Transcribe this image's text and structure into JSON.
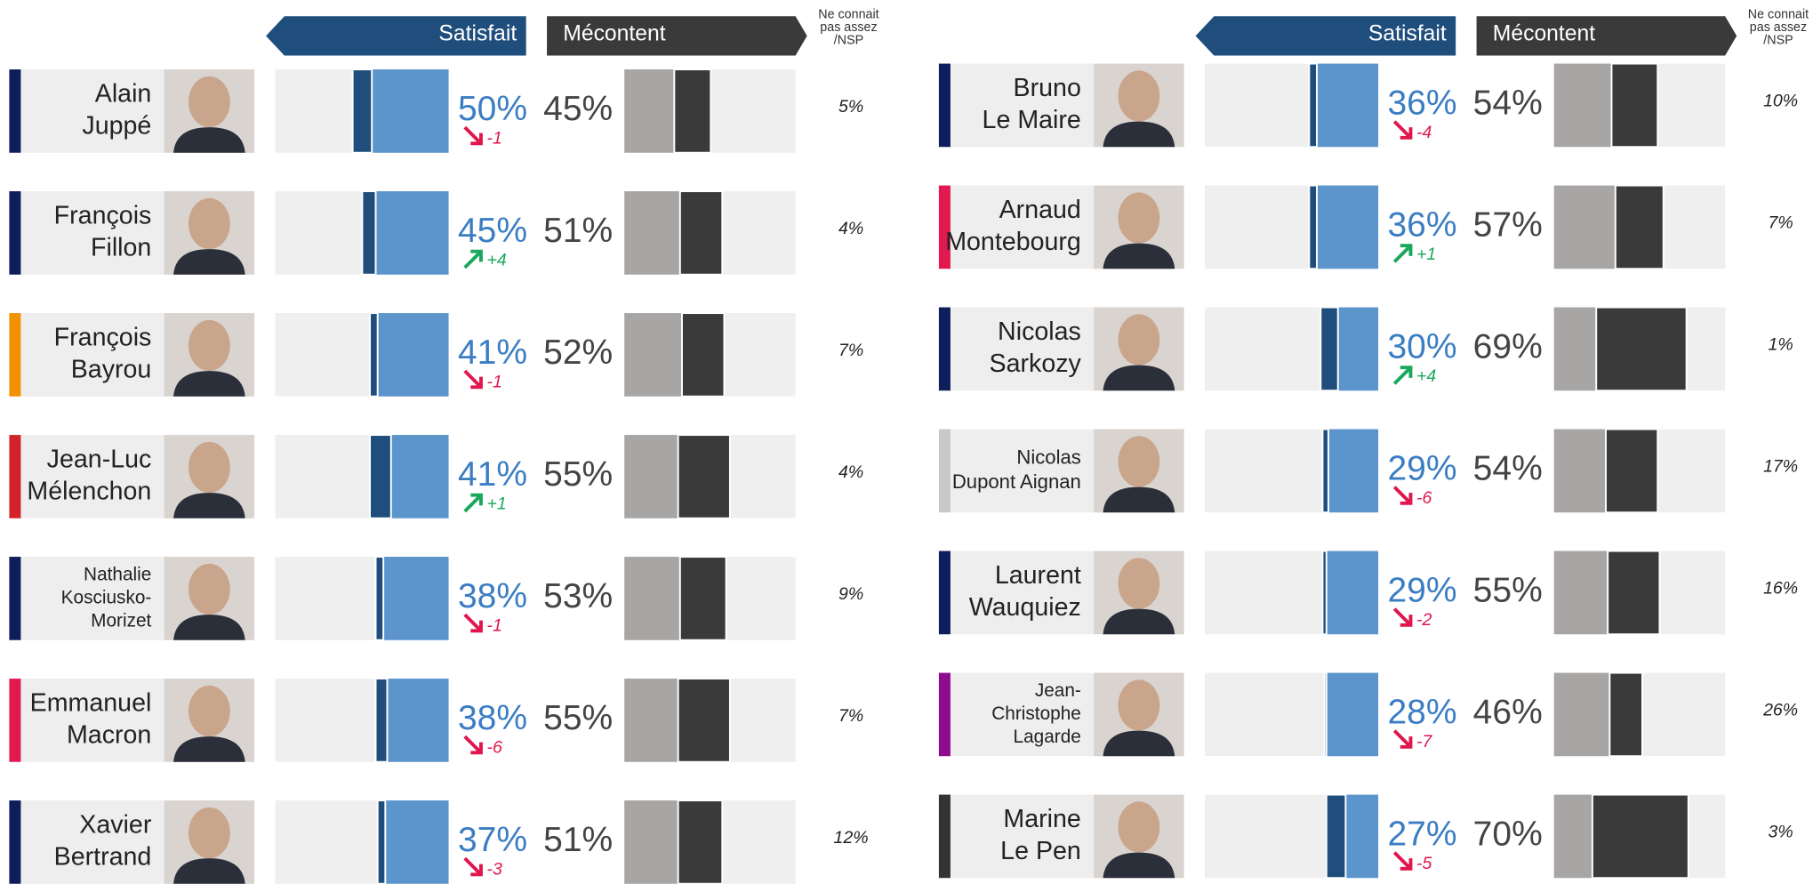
{
  "panels": [
    {
      "header": {
        "satisfied": "Satisfait",
        "unhappy": "Mécontent",
        "unknown": [
          "Ne connait",
          "pas assez",
          "/NSP"
        ]
      },
      "people": [
        {
          "name": [
            "Alain",
            "Juppé"
          ],
          "party_color": "#0d1e5b",
          "satisfied": 50,
          "satisfied_label": "50%",
          "very_satisfied": 10,
          "change": {
            "value": -1,
            "label": "-1"
          },
          "unhappy": 45,
          "unhappy_label": "45%",
          "very_unhappy": 19,
          "unknown": 5,
          "unknown_label": "5%"
        },
        {
          "name": [
            "François",
            "Fillon"
          ],
          "party_color": "#0d1e5b",
          "satisfied": 45,
          "satisfied_label": "45%",
          "very_satisfied": 7,
          "change": {
            "value": 4,
            "label": "+4"
          },
          "unhappy": 51,
          "unhappy_label": "51%",
          "very_unhappy": 22,
          "unknown": 4,
          "unknown_label": "4%"
        },
        {
          "name": [
            "François",
            "Bayrou"
          ],
          "party_color": "#f39200",
          "satisfied": 41,
          "satisfied_label": "41%",
          "very_satisfied": 4,
          "change": {
            "value": -1,
            "label": "-1"
          },
          "unhappy": 52,
          "unhappy_label": "52%",
          "very_unhappy": 22,
          "unknown": 7,
          "unknown_label": "7%"
        },
        {
          "name": [
            "Jean-Luc",
            "Mélenchon"
          ],
          "party_color": "#d2232a",
          "satisfied": 41,
          "satisfied_label": "41%",
          "very_satisfied": 11,
          "change": {
            "value": 1,
            "label": "+1"
          },
          "unhappy": 55,
          "unhappy_label": "55%",
          "very_unhappy": 27,
          "unknown": 4,
          "unknown_label": "4%"
        },
        {
          "name": [
            "Nathalie",
            "Kosciusko-",
            "Morizet"
          ],
          "party_color": "#0d1e5b",
          "satisfied": 38,
          "satisfied_label": "38%",
          "very_satisfied": 4,
          "change": {
            "value": -1,
            "label": "-1"
          },
          "unhappy": 53,
          "unhappy_label": "53%",
          "very_unhappy": 24,
          "unknown": 9,
          "unknown_label": "9%"
        },
        {
          "name": [
            "Emmanuel",
            "Macron"
          ],
          "party_color": "#e2194f",
          "satisfied": 38,
          "satisfied_label": "38%",
          "very_satisfied": 6,
          "change": {
            "value": -6,
            "label": "-6"
          },
          "unhappy": 55,
          "unhappy_label": "55%",
          "very_unhappy": 27,
          "unknown": 7,
          "unknown_label": "7%"
        },
        {
          "name": [
            "Xavier",
            "Bertrand"
          ],
          "party_color": "#0d1e5b",
          "satisfied": 37,
          "satisfied_label": "37%",
          "very_satisfied": 4,
          "change": {
            "value": -3,
            "label": "-3"
          },
          "unhappy": 51,
          "unhappy_label": "51%",
          "very_unhappy": 23,
          "unknown": 12,
          "unknown_label": "12%"
        }
      ]
    },
    {
      "header": {
        "satisfied": "Satisfait",
        "unhappy": "Mécontent",
        "unknown": [
          "Ne connait",
          "pas assez",
          "/NSP"
        ]
      },
      "people": [
        {
          "name": [
            "Bruno",
            "Le Maire"
          ],
          "party_color": "#0d1e5b",
          "satisfied": 36,
          "satisfied_label": "36%",
          "very_satisfied": 4,
          "change": {
            "value": -4,
            "label": "-4"
          },
          "unhappy": 54,
          "unhappy_label": "54%",
          "very_unhappy": 24,
          "unknown": 10,
          "unknown_label": "10%"
        },
        {
          "name": [
            "Arnaud",
            "Montebourg"
          ],
          "party_color": "#e2194f",
          "satisfied": 36,
          "satisfied_label": "36%",
          "very_satisfied": 4,
          "change": {
            "value": 1,
            "label": "+1"
          },
          "unhappy": 57,
          "unhappy_label": "57%",
          "very_unhappy": 25,
          "unknown": 7,
          "unknown_label": "7%"
        },
        {
          "name": [
            "Nicolas",
            "Sarkozy"
          ],
          "party_color": "#0d1e5b",
          "satisfied": 30,
          "satisfied_label": "30%",
          "very_satisfied": 9,
          "change": {
            "value": 4,
            "label": "+4"
          },
          "unhappy": 69,
          "unhappy_label": "69%",
          "very_unhappy": 47,
          "unknown": 1,
          "unknown_label": "1%"
        },
        {
          "name": [
            "Nicolas",
            "Dupont Aignan"
          ],
          "party_color": "#c8c8c8",
          "satisfied": 29,
          "satisfied_label": "29%",
          "very_satisfied": 3,
          "change": {
            "value": -6,
            "label": "-6"
          },
          "unhappy": 54,
          "unhappy_label": "54%",
          "very_unhappy": 27,
          "unknown": 17,
          "unknown_label": "17%"
        },
        {
          "name": [
            "Laurent",
            "Wauquiez"
          ],
          "party_color": "#0d1e5b",
          "satisfied": 29,
          "satisfied_label": "29%",
          "very_satisfied": 2,
          "change": {
            "value": -2,
            "label": "-2"
          },
          "unhappy": 55,
          "unhappy_label": "55%",
          "very_unhappy": 27,
          "unknown": 16,
          "unknown_label": "16%"
        },
        {
          "name": [
            "Jean-",
            "Christophe",
            "Lagarde"
          ],
          "party_color": "#8e0b8e",
          "satisfied": 28,
          "satisfied_label": "28%",
          "very_satisfied": 1,
          "change": {
            "value": -7,
            "label": "-7"
          },
          "unhappy": 46,
          "unhappy_label": "46%",
          "very_unhappy": 17,
          "unknown": 26,
          "unknown_label": "26%"
        },
        {
          "name": [
            "Marine",
            "Le Pen"
          ],
          "party_color": "#333333",
          "satisfied": 27,
          "satisfied_label": "27%",
          "very_satisfied": 10,
          "change": {
            "value": -5,
            "label": "-5"
          },
          "unhappy": 70,
          "unhappy_label": "70%",
          "very_unhappy": 50,
          "unknown": 3,
          "unknown_label": "3%"
        }
      ]
    }
  ]
}
